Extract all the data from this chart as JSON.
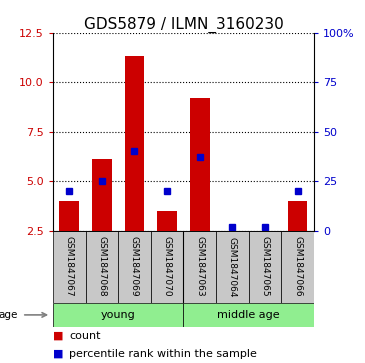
{
  "title": "GDS5879 / ILMN_3160230",
  "samples": [
    "GSM1847067",
    "GSM1847068",
    "GSM1847069",
    "GSM1847070",
    "GSM1847063",
    "GSM1847064",
    "GSM1847065",
    "GSM1847066"
  ],
  "counts": [
    4.0,
    6.1,
    11.3,
    3.5,
    9.2,
    2.5,
    2.5,
    4.0
  ],
  "percentile_ranks": [
    20,
    25,
    40,
    20,
    37,
    2,
    2,
    20
  ],
  "groups": [
    {
      "label": "young",
      "indices": [
        0,
        1,
        2,
        3
      ],
      "color": "#90EE90"
    },
    {
      "label": "middle age",
      "indices": [
        4,
        5,
        6,
        7
      ],
      "color": "#90EE90"
    }
  ],
  "ylim_left": [
    2.5,
    12.5
  ],
  "ylim_right": [
    0,
    100
  ],
  "yticks_left": [
    2.5,
    5.0,
    7.5,
    10.0,
    12.5
  ],
  "yticks_right": [
    0,
    25,
    50,
    75,
    100
  ],
  "bar_color": "#CC0000",
  "dot_color": "#0000CC",
  "bar_width": 0.6,
  "bg_color_label": "#C8C8C8",
  "legend_count_label": "count",
  "legend_pct_label": "percentile rank within the sample",
  "age_label": "age",
  "title_fontsize": 11,
  "tick_fontsize": 8,
  "sample_fontsize": 6.5,
  "group_fontsize": 8,
  "legend_fontsize": 8
}
